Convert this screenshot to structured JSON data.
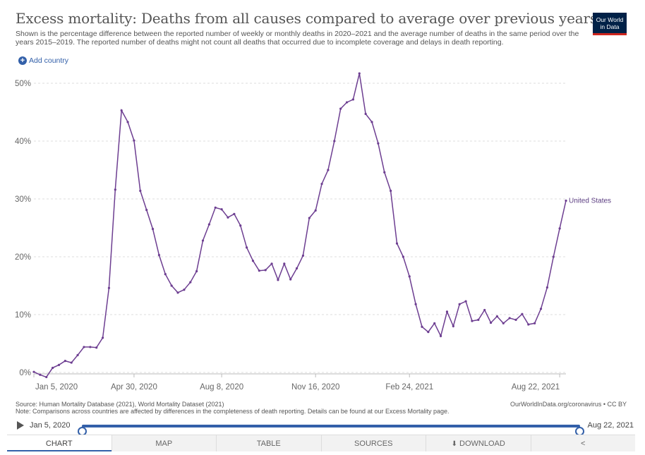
{
  "header": {
    "title": "Excess mortality: Deaths from all causes compared to average over previous years",
    "subtitle": "Shown is the percentage difference between the reported number of weekly or monthly deaths in 2020–2021 and the average number of deaths in the same period over the years 2015–2019. The reported number of deaths might not count all deaths that occurred due to incomplete coverage and delays in death reporting.",
    "logo_line1": "Our World",
    "logo_line2": "in Data",
    "add_country_label": "Add country"
  },
  "chart_data": {
    "type": "line",
    "title": "Excess mortality: Deaths from all causes compared to average over previous years",
    "ylabel": "",
    "xlabel": "",
    "ylim": [
      0,
      52
    ],
    "yticks": [
      0,
      10,
      20,
      30,
      40,
      50
    ],
    "ytick_labels": [
      "0%",
      "10%",
      "20%",
      "30%",
      "40%",
      "50%"
    ],
    "xticks": [
      0,
      16,
      30,
      45,
      60,
      84
    ],
    "xtick_labels": [
      "Jan 5, 2020",
      "Apr 30, 2020",
      "Aug 8, 2020",
      "Nov 16, 2020",
      "Feb 24, 2021",
      "Aug 22, 2021"
    ],
    "x_unit": "weeks since Jan 5, 2020",
    "grid": "horizontal dashed",
    "series": [
      {
        "name": "United States",
        "color": "#6d3e91",
        "values": [
          0.1,
          -0.4,
          -0.8,
          0.8,
          1.3,
          2.0,
          1.7,
          3.0,
          4.4,
          4.4,
          4.3,
          6.0,
          14.6,
          31.6,
          45.3,
          43.3,
          40.1,
          31.4,
          28.1,
          24.8,
          20.3,
          17.0,
          15.0,
          13.8,
          14.3,
          15.6,
          17.5,
          22.8,
          25.6,
          28.5,
          28.2,
          26.8,
          27.4,
          25.4,
          21.6,
          19.3,
          17.6,
          17.7,
          18.8,
          16.0,
          18.8,
          16.1,
          18.0,
          20.2,
          26.7,
          28.0,
          32.6,
          35.0,
          40.0,
          45.6,
          46.7,
          47.2,
          51.7,
          44.7,
          43.3,
          39.6,
          34.6,
          31.4,
          22.3,
          20.0,
          16.6,
          11.8,
          7.9,
          7.0,
          8.5,
          6.3,
          10.5,
          8.0,
          11.8,
          12.3,
          8.9,
          9.1,
          10.8,
          8.6,
          9.7,
          8.5,
          9.4,
          9.1,
          10.1,
          8.3,
          8.5,
          11.0,
          14.7,
          20.0,
          24.9,
          29.7
        ]
      }
    ]
  },
  "footer": {
    "source": "Source: Human Mortality Database (2021), World Mortality Dataset (2021)",
    "note": "Note: Comparisons across countries are affected by differences in the completeness of death reporting. Details can be found at our Excess Mortality page.",
    "credit": "OurWorldInData.org/coronavirus • CC BY"
  },
  "timeline": {
    "start_label": "Jan 5, 2020",
    "end_label": "Aug 22, 2021"
  },
  "tabs": [
    {
      "label": "CHART",
      "active": true
    },
    {
      "label": "MAP"
    },
    {
      "label": "TABLE"
    },
    {
      "label": "SOURCES"
    },
    {
      "label": "DOWNLOAD"
    },
    {
      "label": "",
      "icon": "share-icon"
    }
  ],
  "colors": {
    "accent": "#3360a9",
    "series": "#6d3e91",
    "logo_bg": "#002147",
    "logo_bar": "#ce261e"
  }
}
